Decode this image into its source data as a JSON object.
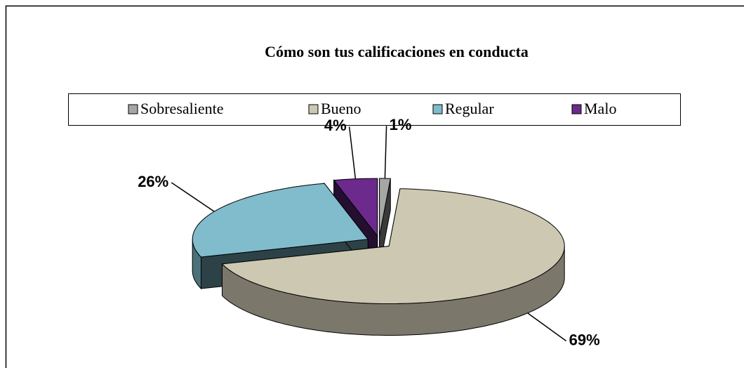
{
  "chart_data": {
    "type": "pie3d",
    "title": "Cómo son tus calificaciones en conducta",
    "categories": [
      "Sobresaliente",
      "Bueno",
      "Regular",
      "Malo"
    ],
    "values": [
      1,
      69,
      26,
      4
    ],
    "value_labels": [
      "1%",
      "69%",
      "26%",
      "4%"
    ],
    "colors": [
      "#a6a6a6",
      "#cdc8b2",
      "#80bccb",
      "#6b2a8c"
    ],
    "legend": "top"
  }
}
